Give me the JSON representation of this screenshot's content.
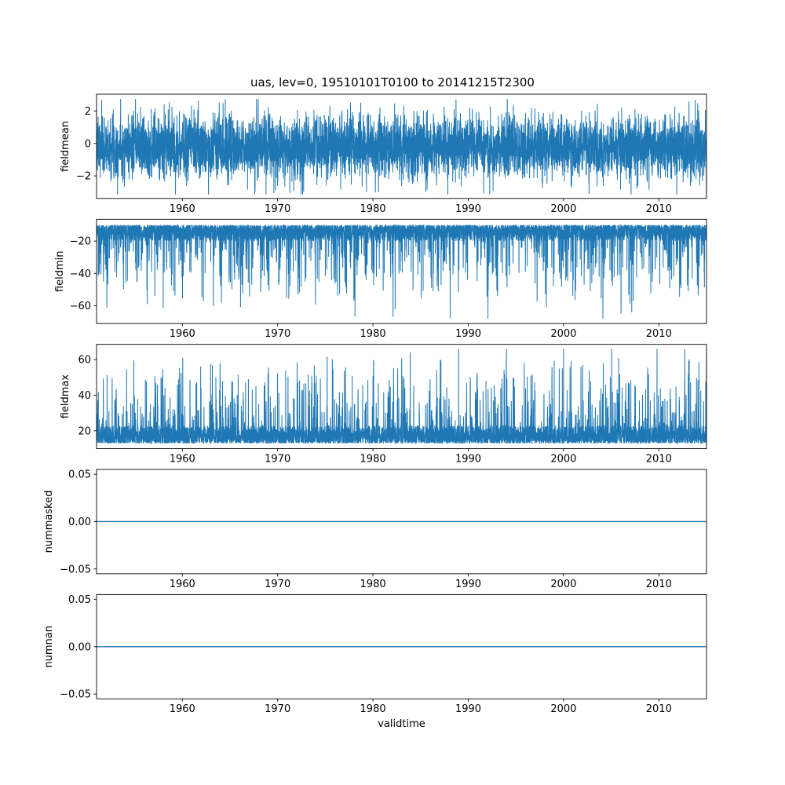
{
  "title": "uas, lev=0, 19510101T0100 to 20141215T2300",
  "xlabel": "validtime",
  "line_color": "#1f77b4",
  "background_color": "#ffffff",
  "axis_color": "#000000",
  "x_range": [
    1951,
    2015
  ],
  "x_ticks": [
    1960,
    1970,
    1980,
    1990,
    2000,
    2010
  ],
  "x_tick_labels": [
    "1960",
    "1970",
    "1980",
    "1990",
    "2000",
    "2010"
  ],
  "chart_data": [
    {
      "type": "line",
      "name": "fieldmean",
      "ylabel": "fieldmean",
      "ytick_values": [
        2,
        0,
        -2
      ],
      "ytick_labels": [
        "2",
        "0",
        "−2"
      ],
      "ylim": [
        -3.39,
        3.04
      ],
      "summary": {
        "description": "dense noisy sub-daily series",
        "approx_mean": -0.2,
        "approx_min": -3.1,
        "approx_max": 2.75
      },
      "synthesis": {
        "kind": "gaussian-noise",
        "seed": 7,
        "points": 5500,
        "mean": -0.2,
        "std": 0.95,
        "clip": [
          -3.15,
          2.75
        ]
      }
    },
    {
      "type": "line",
      "name": "fieldmin",
      "ylabel": "fieldmin",
      "ytick_values": [
        -20,
        -40,
        -60
      ],
      "ytick_labels": [
        "−20",
        "−40",
        "−60"
      ],
      "ylim": [
        -71,
        -6.5
      ],
      "summary": {
        "description": "dense band near top with downward spikes",
        "band": [
          -22,
          -9
        ],
        "deepest_spike": -68
      },
      "synthesis": {
        "kind": "spiky-band",
        "seed": 11,
        "points": 5500,
        "band": [
          -20,
          -10
        ],
        "direction": -1,
        "extreme": -68,
        "phase": 0.8
      }
    },
    {
      "type": "line",
      "name": "fieldmax",
      "ylabel": "fieldmax",
      "ytick_values": [
        60,
        40,
        20
      ],
      "ytick_labels": [
        "60",
        "40",
        "20"
      ],
      "ylim": [
        10,
        68.5
      ],
      "summary": {
        "description": "dense band near bottom with upward spikes",
        "band": [
          13,
          28
        ],
        "highest_spike": 66
      },
      "synthesis": {
        "kind": "spiky-band",
        "seed": 13,
        "points": 5500,
        "band": [
          13,
          23
        ],
        "direction": 1,
        "extreme": 66,
        "phase": 2.2
      }
    },
    {
      "type": "line",
      "name": "nummasked",
      "ylabel": "nummasked",
      "ytick_values": [
        0.05,
        0,
        -0.05
      ],
      "ytick_labels": [
        "0.05",
        "0.00",
        "−0.05"
      ],
      "ylim": [
        -0.055,
        0.055
      ],
      "summary": {
        "description": "constant zero line",
        "constant": 0
      },
      "synthesis": {
        "kind": "constant",
        "points": 2,
        "value": 0
      }
    },
    {
      "type": "line",
      "name": "numnan",
      "ylabel": "numnan",
      "ytick_values": [
        0.05,
        0,
        -0.05
      ],
      "ytick_labels": [
        "0.05",
        "0.00",
        "−0.05"
      ],
      "ylim": [
        -0.055,
        0.055
      ],
      "summary": {
        "description": "constant zero line",
        "constant": 0
      },
      "synthesis": {
        "kind": "constant",
        "points": 2,
        "value": 0
      }
    }
  ]
}
